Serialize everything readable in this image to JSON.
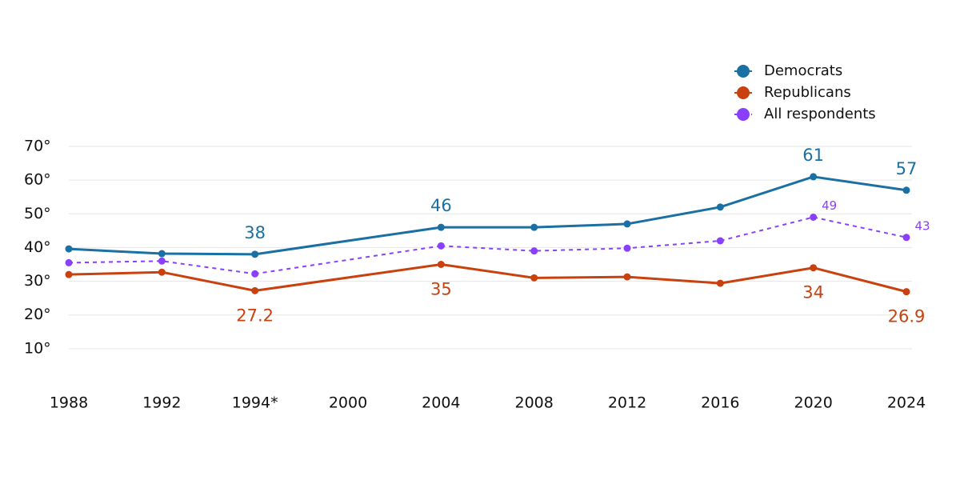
{
  "chart_data": {
    "type": "line",
    "categories": [
      "1988",
      "1992",
      "1994*",
      "2000",
      "2004",
      "2008",
      "2012",
      "2016",
      "2020",
      "2024"
    ],
    "ylim": [
      0,
      70
    ],
    "yticks": [
      {
        "value": 10,
        "label": "10°"
      },
      {
        "value": 20,
        "label": "20°"
      },
      {
        "value": 30,
        "label": "30°"
      },
      {
        "value": 40,
        "label": "40°"
      },
      {
        "value": 50,
        "label": "50°"
      },
      {
        "value": 60,
        "label": "60°"
      },
      {
        "value": 70,
        "label": "70°"
      }
    ],
    "grid": true,
    "legend": "top-right",
    "series": [
      {
        "name": "Democrats",
        "color": "#1a6fa3",
        "style": "solid",
        "values": [
          39.6,
          38.2,
          38,
          null,
          46,
          46,
          47,
          52,
          61,
          57
        ],
        "value_labels": [
          null,
          null,
          "38",
          null,
          "46",
          null,
          null,
          null,
          "61",
          "57"
        ]
      },
      {
        "name": "Republicans",
        "color": "#c9410f",
        "style": "solid",
        "values": [
          32,
          32.7,
          27.2,
          null,
          35,
          31,
          31.3,
          29.4,
          34,
          26.9
        ],
        "value_labels": [
          null,
          null,
          "27.2",
          null,
          "35",
          null,
          null,
          null,
          "34",
          "26.9"
        ]
      },
      {
        "name": "All respondents",
        "color": "#8a3ffc",
        "style": "dashed",
        "values": [
          35.5,
          36,
          32.2,
          null,
          40.5,
          39,
          39.8,
          42,
          49,
          43
        ],
        "value_labels": [
          null,
          null,
          null,
          null,
          null,
          null,
          null,
          null,
          "49",
          "43"
        ]
      }
    ]
  }
}
